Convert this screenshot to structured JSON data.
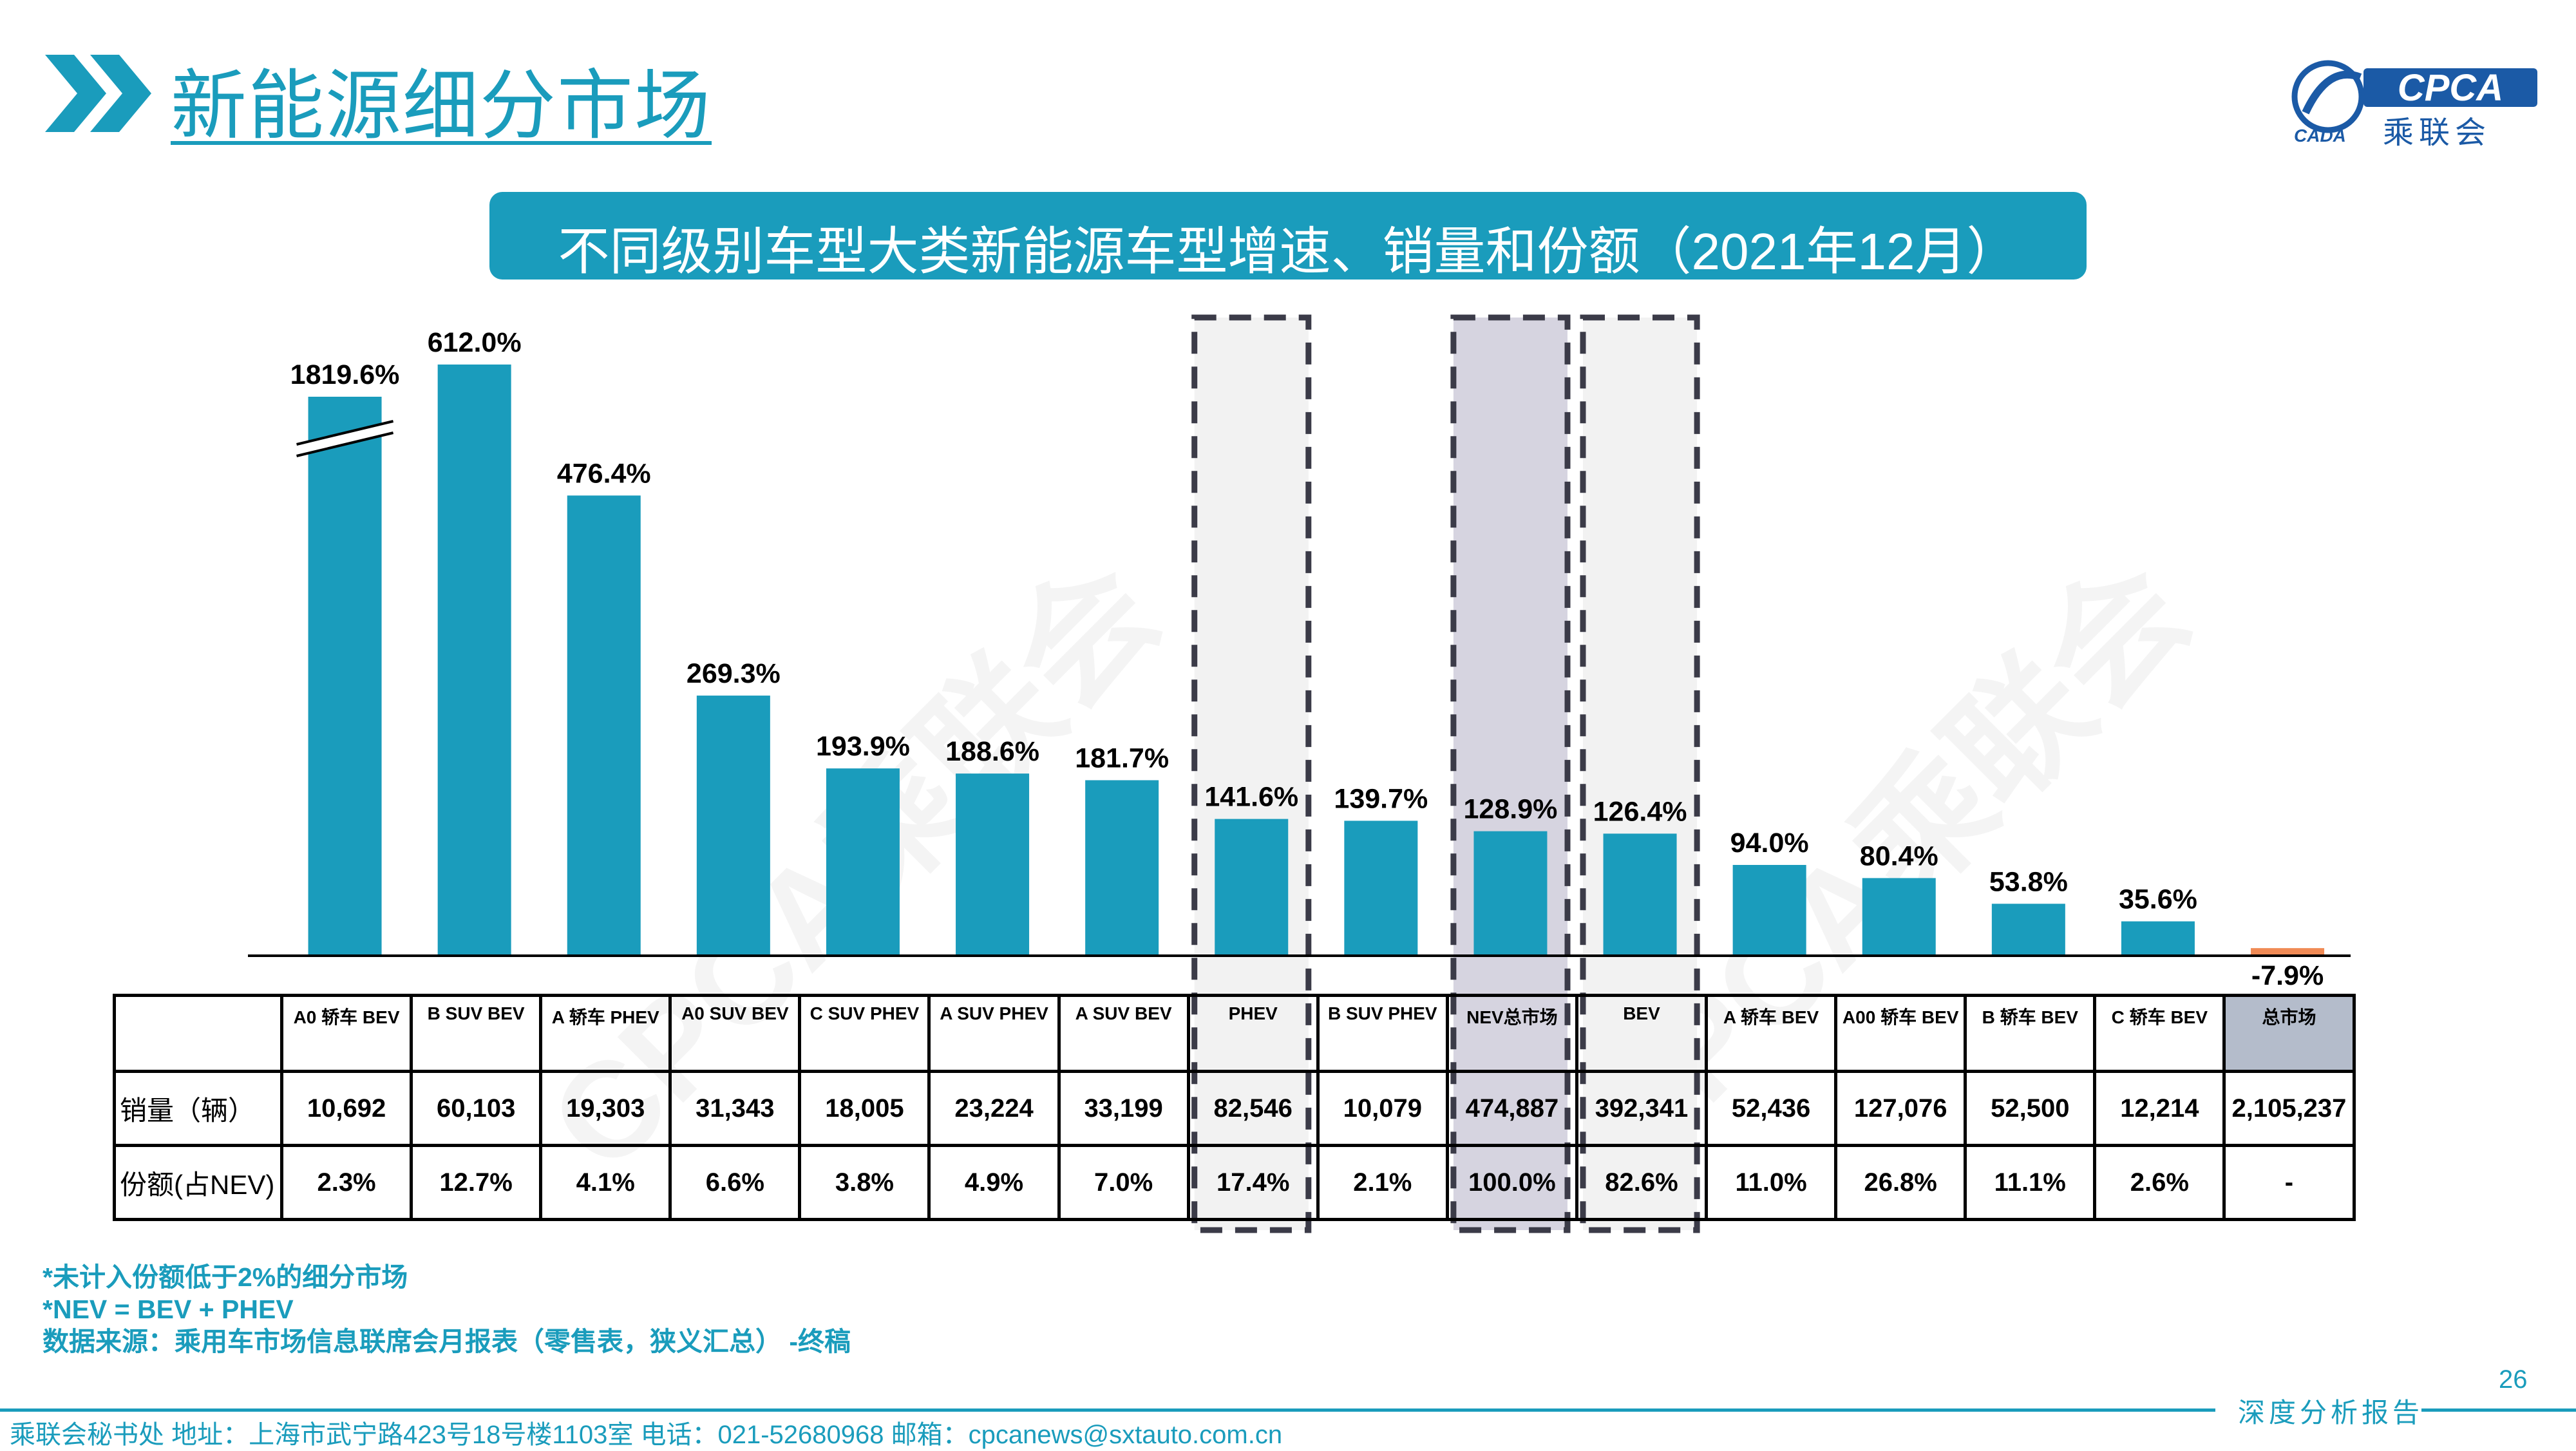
{
  "header": {
    "title": "新能源细分市场",
    "logo_text": "乘联会",
    "logo_brand": "CPCA",
    "logo_sub": "CADA"
  },
  "banner": {
    "text": "不同级别车型大类新能源车型增速、销量和份额（2021年12月）"
  },
  "watermark": "CPCA乘联会",
  "chart_data": {
    "type": "bar",
    "title": "",
    "xlabel": "",
    "ylabel": "",
    "categories": [
      "A0 轿车 BEV",
      "B SUV BEV",
      "A 轿车 PHEV",
      "A0 SUV BEV",
      "C SUV PHEV",
      "A SUV PHEV",
      "A SUV BEV",
      "PHEV",
      "B SUV PHEV",
      "NEV总市场",
      "BEV",
      "A 轿车 BEV",
      "A00 轿车 BEV",
      "B 轿车 BEV",
      "C 轿车 BEV",
      "总市场"
    ],
    "values": [
      1819.6,
      612.0,
      476.4,
      269.3,
      193.9,
      188.6,
      181.7,
      141.6,
      139.7,
      128.9,
      126.4,
      94.0,
      80.4,
      53.8,
      35.6,
      -7.9
    ],
    "value_labels": [
      "1819.6%",
      "612.0%",
      "476.4%",
      "269.3%",
      "193.9%",
      "188.6%",
      "181.7%",
      "141.6%",
      "139.7%",
      "128.9%",
      "126.4%",
      "94.0%",
      "80.4%",
      "53.8%",
      "35.6%",
      "-7.9%"
    ],
    "axis_break_on_first_bar": true,
    "ylim": [
      -10,
      660
    ],
    "grid": false,
    "bar_color": "#1a9cbc",
    "negative_bar_color": "#f08a55",
    "highlighted_categories": [
      "PHEV",
      "NEV总市场",
      "BEV"
    ],
    "highlight_fills": {
      "PHEV": "#f2f2f2",
      "NEV总市场": "#d6d4e0",
      "BEV": "#f2f2f2"
    },
    "table_rows": [
      {
        "label": "销量（辆）",
        "values": [
          "10,692",
          "60,103",
          "19,303",
          "31,343",
          "18,005",
          "23,224",
          "33,199",
          "82,546",
          "10,079",
          "474,887",
          "392,341",
          "52,436",
          "127,076",
          "52,500",
          "12,214",
          "2,105,237"
        ]
      },
      {
        "label": "份额(占NEV)",
        "values": [
          "2.3%",
          "12.7%",
          "4.1%",
          "6.6%",
          "3.8%",
          "4.9%",
          "7.0%",
          "17.4%",
          "2.1%",
          "100.0%",
          "82.6%",
          "11.0%",
          "26.8%",
          "11.1%",
          "2.6%",
          "-"
        ]
      }
    ]
  },
  "notes": [
    "*未计入份额低于2%的细分市场",
    "*NEV = BEV + PHEV",
    "数据来源：乘用车市场信息联席会月报表（零售表，狭义汇总） -终稿"
  ],
  "page_number": "26",
  "footer": {
    "contact": "乘联会秘书处   地址：上海市武宁路423号18号楼1103室   电话：021-52680968   邮箱：cpcanews@sxtauto.com.cn",
    "report_label": "深度分析报告"
  }
}
